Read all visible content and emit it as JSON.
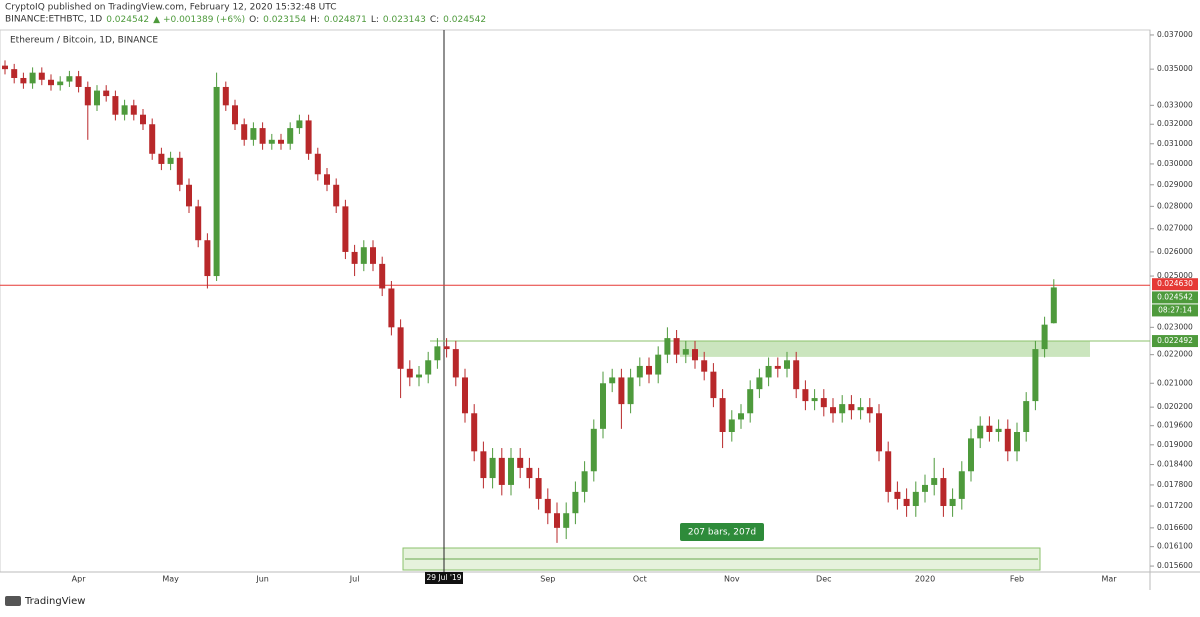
{
  "header": {
    "publisher": "CryptoIQ published on TradingView.com, February 12, 2020 15:32:48 UTC",
    "symbol": "BINANCE:ETHBTC, 1D",
    "last": "0.024542",
    "change": "▲ +0.001389 (+6%)",
    "ohlc": [
      "O:",
      "0.023154",
      "H:",
      "0.024871",
      "L:",
      "0.023143",
      "C:",
      "0.024542"
    ]
  },
  "footer": "TradingView",
  "chart_data": {
    "type": "candlestick",
    "title": "Ethereum / Bitcoin, 1D, BINANCE",
    "up_color": "#4e9a3c",
    "down_color": "#b8282a",
    "log_scale": true,
    "ylim": [
      0.01545,
      0.0373
    ],
    "yticks": [
      {
        "value": 0.0156,
        "label": "0.015600"
      },
      {
        "value": 0.0161,
        "label": "0.016100"
      },
      {
        "value": 0.0166,
        "label": "0.016600"
      },
      {
        "value": 0.0172,
        "label": "0.017200"
      },
      {
        "value": 0.0178,
        "label": "0.017800"
      },
      {
        "value": 0.0184,
        "label": "0.018400"
      },
      {
        "value": 0.019,
        "label": "0.019000"
      },
      {
        "value": 0.0196,
        "label": "0.019600"
      },
      {
        "value": 0.0202,
        "label": "0.020200"
      },
      {
        "value": 0.021,
        "label": "0.021000"
      },
      {
        "value": 0.022,
        "label": "0.022000"
      },
      {
        "value": 0.023,
        "label": "0.023000"
      },
      {
        "value": 0.025,
        "label": "0.025000"
      },
      {
        "value": 0.026,
        "label": "0.026000"
      },
      {
        "value": 0.027,
        "label": "0.027000"
      },
      {
        "value": 0.028,
        "label": "0.028000"
      },
      {
        "value": 0.029,
        "label": "0.029000"
      },
      {
        "value": 0.03,
        "label": "0.030000"
      },
      {
        "value": 0.031,
        "label": "0.031000"
      },
      {
        "value": 0.032,
        "label": "0.032000"
      },
      {
        "value": 0.033,
        "label": "0.033000"
      },
      {
        "value": 0.035,
        "label": "0.035000"
      },
      {
        "value": 0.037,
        "label": "0.037000"
      }
    ],
    "categories": [
      null,
      null,
      null,
      null,
      null,
      null,
      null,
      null,
      "Apr",
      null,
      null,
      null,
      null,
      null,
      null,
      null,
      null,
      null,
      "May",
      null,
      null,
      null,
      null,
      null,
      null,
      null,
      null,
      null,
      "Jun",
      null,
      null,
      null,
      null,
      null,
      null,
      null,
      null,
      null,
      "Jul",
      null,
      null,
      null,
      null,
      null,
      null,
      null,
      null,
      null,
      "29 Jul '19",
      null,
      null,
      null,
      null,
      null,
      null,
      null,
      null,
      null,
      null,
      "Sep",
      null,
      null,
      null,
      null,
      null,
      null,
      null,
      null,
      null,
      "Oct",
      null,
      null,
      null,
      null,
      null,
      null,
      null,
      null,
      null,
      "Nov",
      null,
      null,
      null,
      null,
      null,
      null,
      null,
      null,
      null,
      "Dec",
      null,
      null,
      null,
      null,
      null,
      null,
      null,
      null,
      null,
      null,
      "2020",
      null,
      null,
      null,
      null,
      null,
      null,
      null,
      null,
      null,
      "Feb",
      null,
      null,
      null,
      null,
      null,
      null,
      null,
      null,
      null,
      "Mar",
      null,
      null,
      null,
      null
    ],
    "open": [
      0.0352,
      0.035,
      0.0345,
      0.0342,
      0.0348,
      0.0344,
      0.0341,
      0.0343,
      0.0346,
      0.034,
      0.033,
      0.0338,
      0.0335,
      0.0325,
      0.033,
      0.0325,
      0.032,
      0.0305,
      0.03,
      0.0303,
      0.029,
      0.028,
      0.0265,
      0.025,
      0.034,
      0.033,
      0.032,
      0.0312,
      0.0318,
      0.031,
      0.0312,
      0.031,
      0.0318,
      0.0322,
      0.0305,
      0.0295,
      0.029,
      0.028,
      0.026,
      0.0255,
      0.0262,
      0.0255,
      0.0245,
      0.023,
      0.0215,
      0.0212,
      0.0213,
      0.0218,
      0.0223,
      0.0222,
      0.0212,
      0.02,
      0.0188,
      0.018,
      0.0186,
      0.0178,
      0.0186,
      0.0183,
      0.018,
      0.0174,
      0.017,
      0.0166,
      0.017,
      0.0176,
      0.0182,
      0.0195,
      0.021,
      0.0212,
      0.0203,
      0.0212,
      0.0216,
      0.0213,
      0.022,
      0.0226,
      0.022,
      0.0222,
      0.0218,
      0.0214,
      0.0205,
      0.0194,
      0.0198,
      0.02,
      0.0208,
      0.0212,
      0.0216,
      0.0215,
      0.0218,
      0.0208,
      0.0204,
      0.0205,
      0.0202,
      0.02,
      0.0203,
      0.0201,
      0.0202,
      0.02,
      0.0188,
      0.0176,
      0.0174,
      0.0172,
      0.0176,
      0.0178,
      0.018,
      0.0172,
      0.0174,
      0.0182,
      0.0192,
      0.0196,
      0.0194,
      0.0195,
      0.0188,
      0.0194,
      0.0204,
      0.0222,
      0.023154,
      null,
      null,
      null,
      null,
      null,
      null,
      null,
      null,
      null,
      null
    ],
    "high": [
      0.0355,
      0.0353,
      0.0348,
      0.0351,
      0.0351,
      0.0347,
      0.0346,
      0.0349,
      0.0349,
      0.0343,
      0.0341,
      0.0341,
      0.0338,
      0.0333,
      0.0333,
      0.0328,
      0.0323,
      0.0308,
      0.0306,
      0.0306,
      0.0293,
      0.0283,
      0.0268,
      0.0348,
      0.0343,
      0.0333,
      0.0323,
      0.0321,
      0.0321,
      0.0315,
      0.0315,
      0.0321,
      0.0325,
      0.0325,
      0.0308,
      0.0298,
      0.0293,
      0.0283,
      0.0263,
      0.0265,
      0.0265,
      0.0258,
      0.0248,
      0.0233,
      0.0218,
      0.0216,
      0.0221,
      0.0226,
      0.0226,
      0.0225,
      0.0215,
      0.0203,
      0.0191,
      0.0189,
      0.0189,
      0.0189,
      0.0189,
      0.0186,
      0.0183,
      0.0177,
      0.0173,
      0.0173,
      0.0179,
      0.0185,
      0.0198,
      0.0214,
      0.0215,
      0.0215,
      0.0215,
      0.0219,
      0.0219,
      0.0223,
      0.023,
      0.0229,
      0.0225,
      0.0225,
      0.0221,
      0.0217,
      0.0208,
      0.0201,
      0.0203,
      0.0211,
      0.0215,
      0.0219,
      0.0219,
      0.0221,
      0.0221,
      0.0211,
      0.0208,
      0.0208,
      0.0205,
      0.0206,
      0.0206,
      0.0205,
      0.0205,
      0.0203,
      0.0191,
      0.0179,
      0.0177,
      0.0179,
      0.0181,
      0.0186,
      0.0183,
      0.0177,
      0.0185,
      0.0195,
      0.0199,
      0.0199,
      0.0198,
      0.0198,
      0.0197,
      0.0207,
      0.0225,
      0.0234,
      0.024871,
      null,
      null,
      null,
      null,
      null,
      null,
      null,
      null,
      null,
      null
    ],
    "low": [
      0.0347,
      0.0342,
      0.0339,
      0.0339,
      0.0341,
      0.0338,
      0.0338,
      0.034,
      0.0337,
      0.0312,
      0.0327,
      0.0332,
      0.0322,
      0.0322,
      0.0322,
      0.0317,
      0.0302,
      0.0297,
      0.0297,
      0.0287,
      0.0277,
      0.0262,
      0.0245,
      0.0248,
      0.0327,
      0.0317,
      0.0309,
      0.0309,
      0.0307,
      0.0307,
      0.0307,
      0.0307,
      0.0315,
      0.0302,
      0.0292,
      0.0287,
      0.0277,
      0.0257,
      0.025,
      0.0252,
      0.0252,
      0.0242,
      0.0227,
      0.0205,
      0.0209,
      0.0209,
      0.021,
      0.0215,
      0.0219,
      0.0209,
      0.0197,
      0.0185,
      0.0177,
      0.0177,
      0.0175,
      0.0175,
      0.018,
      0.0177,
      0.0171,
      0.0167,
      0.0162,
      0.0163,
      0.0167,
      0.0173,
      0.0179,
      0.0192,
      0.0207,
      0.0195,
      0.02,
      0.0209,
      0.021,
      0.021,
      0.0217,
      0.0217,
      0.0217,
      0.0215,
      0.0211,
      0.0202,
      0.0189,
      0.0191,
      0.0195,
      0.0197,
      0.0205,
      0.0209,
      0.0212,
      0.0212,
      0.0205,
      0.0201,
      0.0201,
      0.0199,
      0.0197,
      0.0197,
      0.0198,
      0.0198,
      0.0197,
      0.0185,
      0.0173,
      0.0171,
      0.0169,
      0.0169,
      0.0173,
      0.0175,
      0.0169,
      0.0169,
      0.0171,
      0.0179,
      0.0189,
      0.0191,
      0.0191,
      0.0185,
      0.0185,
      0.0191,
      0.0201,
      0.0219,
      0.023143,
      null,
      null,
      null,
      null,
      null,
      null,
      null,
      null,
      null,
      null
    ],
    "close": [
      0.035,
      0.0345,
      0.0342,
      0.0348,
      0.0344,
      0.0341,
      0.0343,
      0.0346,
      0.034,
      0.033,
      0.0338,
      0.0335,
      0.0325,
      0.033,
      0.0325,
      0.032,
      0.0305,
      0.03,
      0.0303,
      0.029,
      0.028,
      0.0265,
      0.025,
      0.034,
      0.033,
      0.032,
      0.0312,
      0.0318,
      0.031,
      0.0312,
      0.031,
      0.0318,
      0.0322,
      0.0305,
      0.0295,
      0.029,
      0.028,
      0.026,
      0.0255,
      0.0262,
      0.0255,
      0.0245,
      0.023,
      0.0215,
      0.0212,
      0.0213,
      0.0218,
      0.0223,
      0.0222,
      0.0212,
      0.02,
      0.0188,
      0.018,
      0.0186,
      0.0178,
      0.0186,
      0.0183,
      0.018,
      0.0174,
      0.017,
      0.0166,
      0.017,
      0.0176,
      0.0182,
      0.0195,
      0.021,
      0.0212,
      0.0203,
      0.0212,
      0.0216,
      0.0213,
      0.022,
      0.0226,
      0.022,
      0.0222,
      0.0218,
      0.0214,
      0.0205,
      0.0194,
      0.0198,
      0.02,
      0.0208,
      0.0212,
      0.0216,
      0.0215,
      0.0218,
      0.0208,
      0.0204,
      0.0205,
      0.0202,
      0.02,
      0.0203,
      0.0201,
      0.0202,
      0.02,
      0.0188,
      0.0176,
      0.0174,
      0.0172,
      0.0176,
      0.0178,
      0.018,
      0.0172,
      0.0174,
      0.0182,
      0.0192,
      0.0196,
      0.0194,
      0.0195,
      0.0188,
      0.0194,
      0.0204,
      0.0222,
      0.0231,
      0.024542,
      null,
      null,
      null,
      null,
      null,
      null,
      null,
      null,
      null,
      null
    ],
    "alert_level": {
      "value": 0.02463,
      "label": "0.024630",
      "color": "#e53935"
    },
    "last_price": {
      "value": 0.024542,
      "label": "0.024542",
      "countdown": "08:27:14",
      "color": "#4e9a3c"
    },
    "resistance": {
      "value": 0.022492,
      "label": "0.022492",
      "zone_low": 0.02192,
      "color": "#4e9a3c"
    },
    "range_label": "207 bars, 207d"
  }
}
